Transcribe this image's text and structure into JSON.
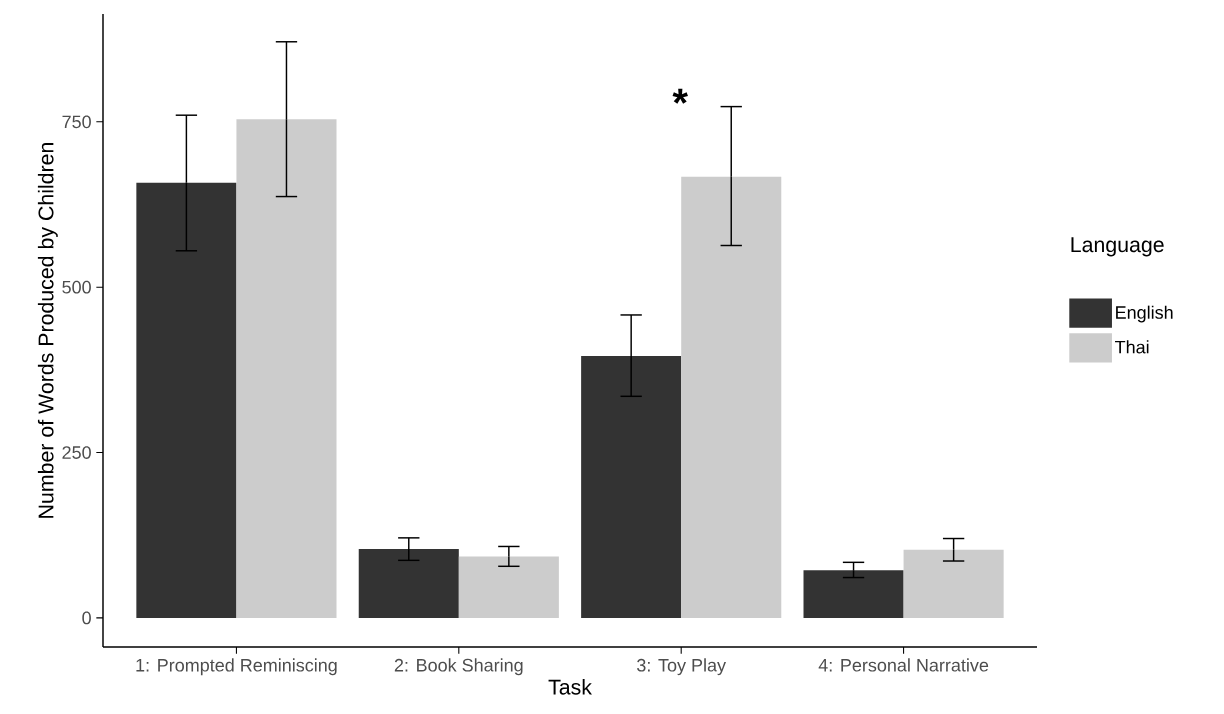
{
  "chart_data": {
    "type": "bar",
    "xlabel": "Task",
    "ylabel": "Number of Words Produced by Children",
    "legend_title": "Language",
    "categories": [
      "1: Prompted Reminiscing",
      "2: Book Sharing",
      "3: Toy Play",
      "4: Personal Narrative"
    ],
    "series": [
      {
        "name": "English",
        "color": "#333333",
        "values": [
          658,
          104,
          396,
          72
        ],
        "errors": [
          [
            555,
            760
          ],
          [
            87,
            121
          ],
          [
            335,
            458
          ],
          [
            61,
            84
          ]
        ]
      },
      {
        "name": "Thai",
        "color": "#cccccc",
        "values": [
          754,
          93,
          667,
          103
        ],
        "errors": [
          [
            637,
            871
          ],
          [
            78,
            108
          ],
          [
            563,
            773
          ],
          [
            86,
            120
          ]
        ]
      }
    ],
    "ylim": [
      -44,
      913
    ],
    "yticks": [
      0,
      250,
      500,
      750
    ],
    "grid": false,
    "legend": "right",
    "annotations": [
      "*"
    ]
  }
}
